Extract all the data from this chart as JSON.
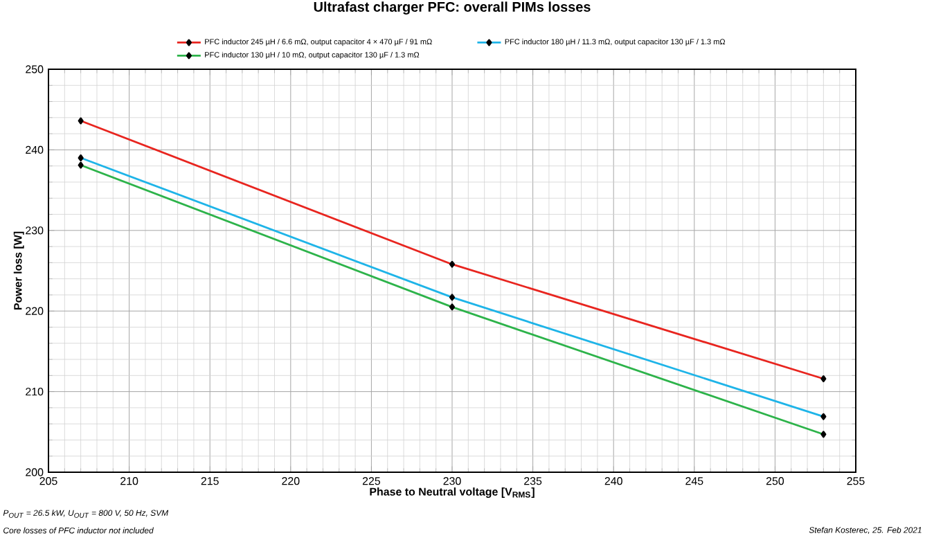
{
  "chart_data": {
    "type": "line",
    "title": "Ultrafast charger PFC: overall PIMs losses",
    "xlabel": "Phase to Neutral voltage [V$_{RMS}$]",
    "ylabel": "Power loss [W]",
    "x": [
      207,
      230,
      253
    ],
    "series": [
      {
        "name": "PFC inductor 245 µH / 6.6 mΩ, output capacitor 4 × 470 µF / 91 mΩ",
        "color": "#e8251f",
        "values": [
          243.6,
          225.8,
          211.6
        ]
      },
      {
        "name": "PFC inductor 180 µH / 11.3 mΩ, output capacitor 130 µF / 1.3 mΩ",
        "color": "#1eb4e8",
        "values": [
          239.0,
          221.7,
          206.9
        ]
      },
      {
        "name": "PFC inductor 130 µH / 10 mΩ, output capacitor 130 µF / 1.3 mΩ",
        "color": "#2db34a",
        "values": [
          238.1,
          220.5,
          204.7
        ]
      }
    ],
    "xlim": [
      205,
      255
    ],
    "xticks": [
      205,
      210,
      215,
      220,
      225,
      230,
      235,
      240,
      245,
      250,
      255
    ],
    "ylim": [
      200,
      250
    ],
    "yticks": [
      200,
      210,
      220,
      230,
      240,
      250
    ],
    "grid": true,
    "legend": "top",
    "marker": "diamond",
    "line_style": "solid",
    "annotations": [
      "P$_{OUT}$ = 26.5 kW, U$_{OUT}$ = 800 V, 50 Hz, SVM",
      "Core losses of PFC inductor not included",
      "Stefan Kosterec, 25. Feb 2021"
    ]
  }
}
